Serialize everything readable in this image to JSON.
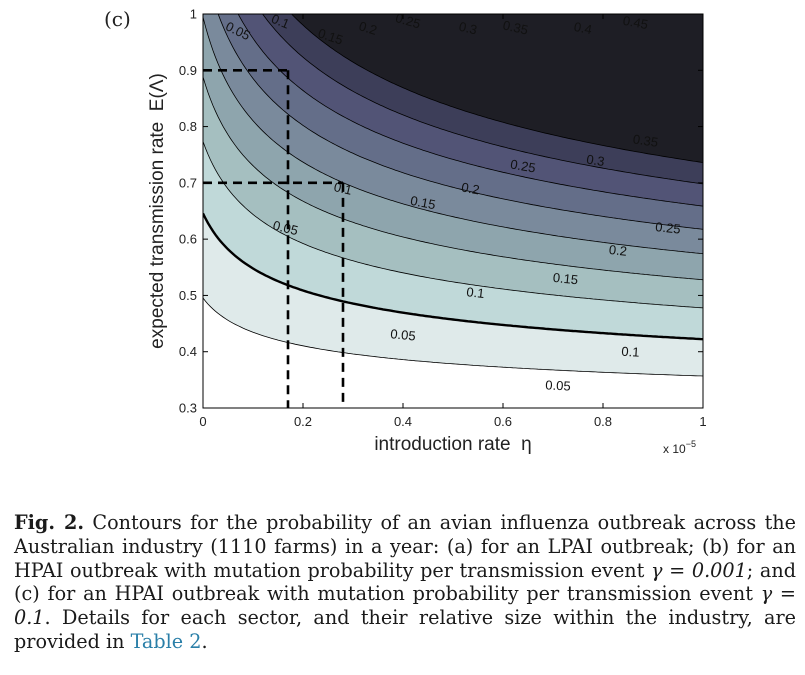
{
  "figure": {
    "panel_label": "(c)",
    "x_label": "introduction rate  η",
    "y_label": "expected transmission rate  E(Λ)",
    "x_exponent": "x 10",
    "x_exponent_power": "−5",
    "x_ticks": [
      "0",
      "0.2",
      "0.4",
      "0.6",
      "0.8",
      "1"
    ],
    "y_ticks": [
      "0.3",
      "0.4",
      "0.5",
      "0.6",
      "0.7",
      "0.8",
      "0.9",
      "1"
    ]
  },
  "chart_data": {
    "type": "contour",
    "x_range": [
      0,
      1
    ],
    "y_range": [
      0.3,
      1
    ],
    "levels": [
      0.05,
      0.1,
      0.15,
      0.2,
      0.25,
      0.3,
      0.35,
      0.4,
      0.45
    ],
    "highlighted_level": 0.1,
    "fill_colors": [
      "#ffffff",
      "#dfeaea",
      "#c0d9d9",
      "#a5bfc0",
      "#8ea5ad",
      "#7a8a9c",
      "#646e89",
      "#525476",
      "#3d3e59",
      "#1e1e25"
    ],
    "contour_labels": [
      {
        "text": "0.05",
        "x": 0.07,
        "y": 0.97
      },
      {
        "text": "0.1",
        "x": 0.155,
        "y": 0.987
      },
      {
        "text": "0.15",
        "x": 0.255,
        "y": 0.96
      },
      {
        "text": "0.2",
        "x": 0.33,
        "y": 0.975
      },
      {
        "text": "0.25",
        "x": 0.41,
        "y": 0.988
      },
      {
        "text": "0.3",
        "x": 0.53,
        "y": 0.975
      },
      {
        "text": "0.35",
        "x": 0.625,
        "y": 0.976
      },
      {
        "text": "0.4",
        "x": 0.76,
        "y": 0.975
      },
      {
        "text": "0.45",
        "x": 0.865,
        "y": 0.985
      },
      {
        "text": "0.35",
        "x": 0.885,
        "y": 0.775
      },
      {
        "text": "0.3",
        "x": 0.785,
        "y": 0.74
      },
      {
        "text": "0.25",
        "x": 0.64,
        "y": 0.73
      },
      {
        "text": "0.2",
        "x": 0.535,
        "y": 0.69
      },
      {
        "text": "0.15",
        "x": 0.44,
        "y": 0.665
      },
      {
        "text": "0.1",
        "x": 0.28,
        "y": 0.69
      },
      {
        "text": "0.05",
        "x": 0.165,
        "y": 0.62
      },
      {
        "text": "0.25",
        "x": 0.93,
        "y": 0.62
      },
      {
        "text": "0.2",
        "x": 0.83,
        "y": 0.58
      },
      {
        "text": "0.15",
        "x": 0.725,
        "y": 0.53
      },
      {
        "text": "0.1",
        "x": 0.545,
        "y": 0.505
      },
      {
        "text": "0.1",
        "x": 0.855,
        "y": 0.4
      },
      {
        "text": "0.05",
        "x": 0.4,
        "y": 0.43
      },
      {
        "text": "0.05",
        "x": 0.71,
        "y": 0.34
      }
    ],
    "guide_lines": [
      {
        "x": 0.17,
        "y": 0.9
      },
      {
        "x": 0.28,
        "y": 0.7
      }
    ]
  },
  "caption": {
    "label": "Fig. 2.",
    "text_1": " Contours for the probability of an avian influenza outbreak across the Australian industry (1110 farms) in a year: (a) for an LPAI outbreak; (b) for an HPAI outbreak with mutation probability per transmission event ",
    "gamma_1": "γ = 0.001",
    "text_2": "; and (c) for an HPAI outbreak with mutation probability per transmission event ",
    "gamma_2": "γ = 0.1",
    "text_3": ". Details for each sector, and their relative size within the industry, are provided in ",
    "link": "Table 2",
    "text_4": "."
  }
}
